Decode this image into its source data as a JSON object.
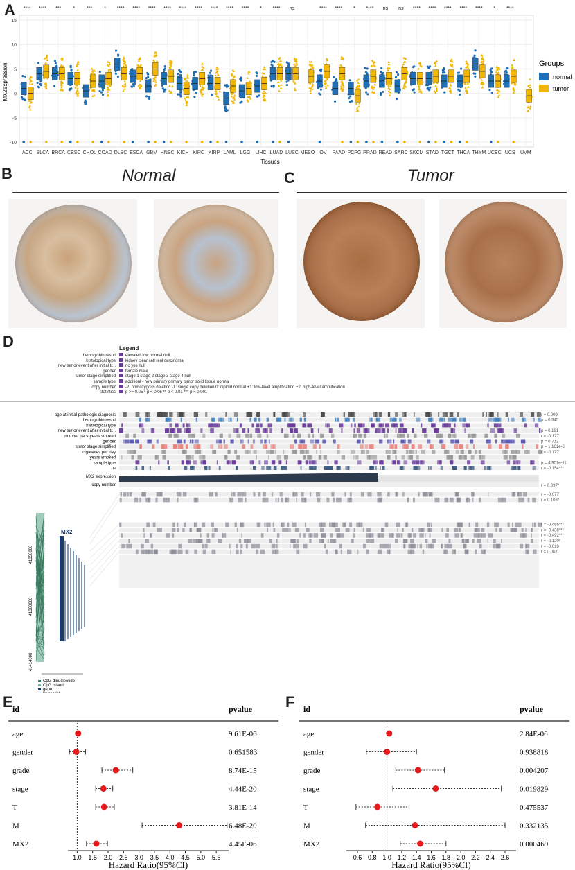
{
  "panels": {
    "A": "A",
    "B": "B",
    "C": "C",
    "D": "D",
    "E": "E",
    "F": "F"
  },
  "panelA": {
    "ylabel": "MX2expression",
    "xlabel": "Tissues",
    "yticks": [
      "-10",
      "-5",
      "0",
      "5",
      "10",
      "15"
    ],
    "legend_title": "Groups",
    "legend_items": [
      {
        "name": "normal",
        "color": "#1f6fb5"
      },
      {
        "name": "tumor",
        "color": "#f2b705"
      }
    ],
    "chart_data": {
      "type": "scatter",
      "xlabel": "Tissues",
      "ylabel": "MX2expression",
      "ylim": [
        -11,
        16
      ],
      "categories": [
        "ACC",
        "BLCA",
        "BRCA",
        "CESC",
        "CHOL",
        "COAD",
        "DLBC",
        "ESCA",
        "GBM",
        "HNSC",
        "KICH",
        "KIRC",
        "KIRP",
        "LAML",
        "LGG",
        "LIHC",
        "LUAD",
        "LUSC",
        "MESO",
        "OV",
        "PAAD",
        "PCPG",
        "PRAD",
        "READ",
        "SARC",
        "SKCM",
        "STAD",
        "TGCT",
        "THCA",
        "THYM",
        "UCEC",
        "UCS",
        "UVM"
      ],
      "significance": [
        "****",
        "****",
        "***",
        "*",
        "***",
        "*",
        "****",
        "****",
        "****",
        "****",
        "****",
        "****",
        "****",
        "****",
        "****",
        "*",
        "****",
        "ns",
        "",
        "****",
        "****",
        "*",
        "****",
        "ns",
        "ns",
        "****",
        "****",
        "****",
        "****",
        "****",
        "*",
        "****",
        ""
      ],
      "series": [
        {
          "name": "normal",
          "center": [
            1,
            4,
            4,
            3,
            0.5,
            2.5,
            6,
            3.5,
            1.5,
            3,
            2,
            2,
            2,
            -1,
            0.5,
            1.5,
            4,
            4,
            null,
            2.5,
            1,
            1,
            2.5,
            2.5,
            1.5,
            3,
            3,
            2.5,
            2.5,
            6,
            2.5,
            2.5,
            null
          ]
        },
        {
          "name": "tumor",
          "center": [
            0,
            4.5,
            4,
            3,
            2.5,
            3,
            4,
            4,
            5,
            3.5,
            1,
            3,
            2,
            1.5,
            1,
            2,
            4,
            4,
            3.5,
            4.5,
            4,
            -0.5,
            3.5,
            3,
            4,
            3,
            3.5,
            3.5,
            3.5,
            4.5,
            2.5,
            3.5,
            -0.5
          ]
        }
      ]
    }
  },
  "panelB": {
    "title": "Normal"
  },
  "panelC": {
    "title": "Tumor"
  },
  "panelD": {
    "legend_title": "Legend",
    "legend_rows": [
      {
        "label": "hemoglobin result",
        "items": "elevated    low    normal    null"
      },
      {
        "label": "histological type",
        "items": "kidney clear cell renl carcinoma"
      },
      {
        "label": "new tumor event after initial tr...",
        "items": "no    yes    null"
      },
      {
        "label": "gender",
        "items": "female    male"
      },
      {
        "label": "tumor stage simplified",
        "items": "stage 1    stage 2    stage 3    stage 4    null"
      },
      {
        "label": "sample type",
        "items": "additionl - new primary    primary tumor    solid tissue normal"
      },
      {
        "label": "copy number",
        "items": "-2: homozygous deletion  -1: single copy deletion  0: diploid normal  +1: low-level amplification  +2: high-level amplification"
      },
      {
        "label": "statistics",
        "items": "p >= 0.05    * p < 0.05    ** p < 0.01    *** p < 0.001"
      }
    ],
    "track_labels": [
      "age at initial pathologic diagnosis",
      "hemoglobin result",
      "histological type",
      "new tumor event after initial tr...",
      "number pack years smoked",
      "gender",
      "tumor stage simplified",
      "cigarettes per day",
      "years smoked",
      "sample type",
      "os"
    ],
    "track_stats": [
      "r = 0.009",
      "p = 0.345",
      "",
      "p = 0.191",
      "r = -0.177",
      "p = 0.713",
      "p = 1.161e-6",
      "r = -0.177",
      "",
      "p = 4.901e-11",
      "r = -0.154***"
    ],
    "expr_labels": [
      "MX2 expression",
      "copy number"
    ],
    "expr_stats": [
      "",
      "r = 0.097*"
    ],
    "meth_stats": [
      "r = -0.077",
      "r = 0.108*",
      "r = -0.466***",
      "r = -0.438***",
      "r = -0.492***",
      "r = -0.120*",
      "r = -0.016",
      "r = 0.007"
    ],
    "gene_label": "MX2",
    "coords": [
      "41358000",
      "41380000",
      "41414000"
    ],
    "bottom_legend": [
      "CpG dinucleotide",
      "CpG island",
      "gene",
      "transcript"
    ]
  },
  "panelE": {
    "header_id": "id",
    "header_p": "pvalue",
    "xlabel": "Hazard Ratio(95%CI)",
    "rows": [
      {
        "id": "age",
        "pvalue": "9.61E-06"
      },
      {
        "id": "gender",
        "pvalue": "0.651583"
      },
      {
        "id": "grade",
        "pvalue": "8.74E-15"
      },
      {
        "id": "stage",
        "pvalue": "4.44E-20"
      },
      {
        "id": "T",
        "pvalue": "3.81E-14"
      },
      {
        "id": "M",
        "pvalue": "6.48E-20"
      },
      {
        "id": "MX2",
        "pvalue": "4.45E-06"
      }
    ],
    "ticks": [
      "1.0",
      "1.5",
      "2.0",
      "2.5",
      "3.0",
      "3.5",
      "4.0",
      "4.5",
      "5.0",
      "5.5"
    ],
    "chart_data": {
      "type": "scatter",
      "xlabel": "Hazard Ratio(95%CI)",
      "xlim": [
        0.7,
        5.9
      ],
      "categories": [
        "age",
        "gender",
        "grade",
        "stage",
        "T",
        "M",
        "MX2"
      ],
      "hr": [
        1.03,
        0.97,
        2.25,
        1.85,
        1.87,
        4.3,
        1.62
      ],
      "lower": [
        1.0,
        0.75,
        1.8,
        1.6,
        1.6,
        3.1,
        1.3
      ],
      "upper": [
        1.05,
        1.27,
        2.8,
        2.15,
        2.2,
        5.85,
        1.98
      ]
    }
  },
  "panelF": {
    "header_id": "id",
    "header_p": "pvalue",
    "xlabel": "Hazard Ratio(95%CI)",
    "rows": [
      {
        "id": "age",
        "pvalue": "2.84E-06"
      },
      {
        "id": "gender",
        "pvalue": "0.938818"
      },
      {
        "id": "grade",
        "pvalue": "0.004207"
      },
      {
        "id": "stage",
        "pvalue": "0.019829"
      },
      {
        "id": "T",
        "pvalue": "0.475537"
      },
      {
        "id": "M",
        "pvalue": "0.332135"
      },
      {
        "id": "MX2",
        "pvalue": "0.000469"
      }
    ],
    "ticks": [
      "0.6",
      "0.8",
      "1.0",
      "1.2",
      "1.4",
      "1.6",
      "1.8",
      "2.0",
      "2.2",
      "2.4",
      "2.6"
    ],
    "chart_data": {
      "type": "scatter",
      "xlabel": "Hazard Ratio(95%CI)",
      "xlim": [
        0.45,
        2.75
      ],
      "categories": [
        "age",
        "gender",
        "grade",
        "stage",
        "T",
        "M",
        "MX2"
      ],
      "hr": [
        1.03,
        1.0,
        1.42,
        1.66,
        0.87,
        1.38,
        1.45
      ],
      "lower": [
        1.01,
        0.72,
        1.12,
        1.08,
        0.58,
        0.71,
        1.18
      ],
      "upper": [
        1.04,
        1.4,
        1.78,
        2.55,
        1.3,
        2.6,
        1.8
      ]
    }
  },
  "colors": {
    "normal": "#1f6fb5",
    "tumor": "#f2b705",
    "forest_point": "#e41a1c"
  }
}
